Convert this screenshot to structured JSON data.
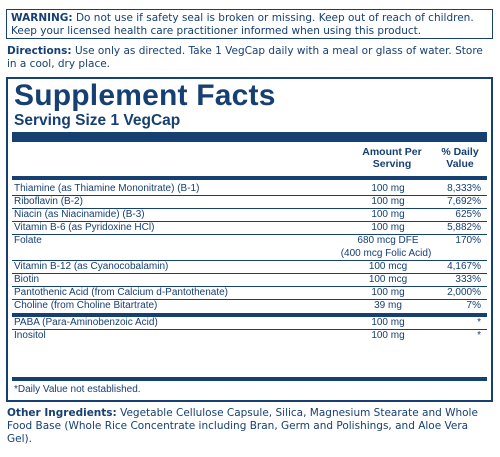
{
  "warning": {
    "label": "WARNING:",
    "text": " Do not use if safety seal is broken or missing. Keep out of reach of children. Keep your licensed health care practitioner informed when using this product."
  },
  "directions": {
    "label": "Directions:",
    "text": " Use only as directed. Take 1 VegCap daily with a meal or glass of water. Store in a cool, dry place."
  },
  "facts": {
    "title": "Supplement Facts",
    "serving": "Serving Size 1 VegCap",
    "header_amount_line1": "Amount Per",
    "header_amount_line2": "Serving",
    "header_dv_line1": "% Daily",
    "header_dv_line2": "Value",
    "rows": [
      {
        "name": "Thiamine (as Thiamine Mononitrate) (B-1)",
        "amount": "100 mg",
        "dv": "8,333%"
      },
      {
        "name": "Riboflavin (B-2)",
        "amount": "100 mg",
        "dv": "7,692%"
      },
      {
        "name": "Niacin (as Niacinamide) (B-3)",
        "amount": "100 mg",
        "dv": "625%"
      },
      {
        "name": "Vitamin B-6 (as Pyridoxine HCl)",
        "amount": "100 mg",
        "dv": "5,882%"
      },
      {
        "name": "Folate",
        "amount": "680 mcg DFE",
        "amount2": "(400 mcg Folic Acid)",
        "dv": "170%"
      },
      {
        "name": "Vitamin B-12 (as Cyanocobalamin)",
        "amount": "100 mcg",
        "dv": "4,167%"
      },
      {
        "name": "Biotin",
        "amount": "100 mcg",
        "dv": "333%"
      },
      {
        "name": "Pantothenic Acid (from Calcium d-Pantothenate)",
        "amount": "100 mg",
        "dv": "2,000%"
      },
      {
        "name": "Choline (from Choline Bitartrate)",
        "amount": "39 mg",
        "dv": "7%"
      },
      {
        "name": "PABA (Para-Aminobenzoic Acid)",
        "amount": "100 mg",
        "dv": "*"
      },
      {
        "name": "Inositol",
        "amount": "100 mg",
        "dv": "*"
      }
    ],
    "footnote": "*Daily Value not established."
  },
  "ingredients": {
    "label": "Other Ingredients:",
    "text": " Vegetable Cellulose Capsule, Silica, Magnesium Stearate and Whole Food Base (Whole Rice Concentrate including Bran, Germ and Polishings, and Aloe Vera Gel)."
  },
  "colors": {
    "ink": "#163f72",
    "background": "#ffffff"
  }
}
